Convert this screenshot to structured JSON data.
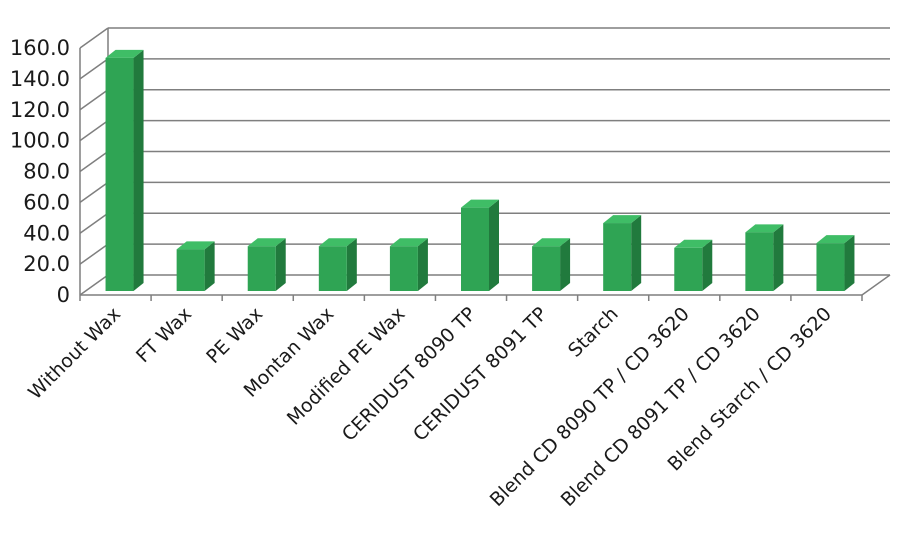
{
  "chart_data": {
    "type": "bar",
    "title": "",
    "xlabel": "",
    "ylabel": "",
    "ylim": [
      0,
      160
    ],
    "ytick_step": 20,
    "ytick_labels": [
      "0",
      "20.0",
      "40.0",
      "60.0",
      "80.0",
      "100.0",
      "120.0",
      "140.0",
      "160.0"
    ],
    "grid": true,
    "legend": "none",
    "style": "3d-column",
    "bar_color": "#2fa454",
    "categories": [
      "Without Wax",
      "FT Wax",
      "PE Wax",
      "Montan Wax",
      "Modified PE Wax",
      "CERIDUST 8090 TP",
      "CERIDUST 8091 TP",
      "Starch",
      "Blend CD 8090 TP / CD 3620",
      "Blend CD 8091 TP / CD 3620",
      "Blend Starch / CD 3620"
    ],
    "values": [
      151,
      27,
      29,
      29,
      29,
      54,
      29,
      44,
      28,
      38,
      31
    ]
  }
}
